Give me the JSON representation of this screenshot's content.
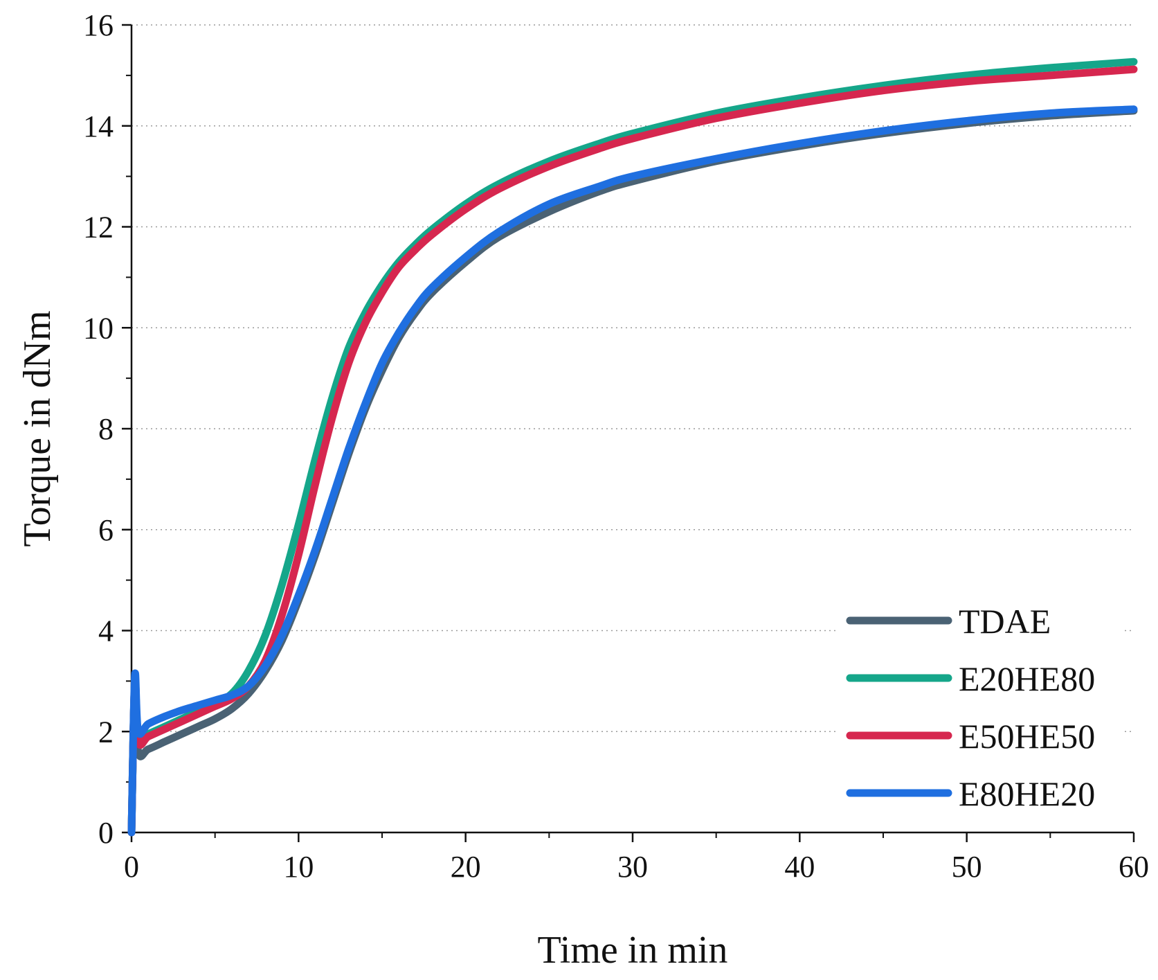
{
  "chart_data": {
    "type": "line",
    "title": "",
    "xlabel": "Time in min",
    "ylabel": "Torque in dNm",
    "xlim": [
      0,
      60
    ],
    "ylim": [
      0,
      16
    ],
    "x_ticks": [
      0,
      10,
      20,
      30,
      40,
      50,
      60
    ],
    "x_tick_labels": [
      "0",
      "10",
      "20",
      "30",
      "40",
      "50",
      "60"
    ],
    "y_ticks": [
      0,
      2,
      4,
      6,
      8,
      10,
      12,
      14,
      16
    ],
    "y_tick_labels": [
      "0",
      "2",
      "4",
      "6",
      "8",
      "10",
      "12",
      "14",
      "16"
    ],
    "grid": "horizontal dotted",
    "legend_position": "bottom-right",
    "series": [
      {
        "name": "TDAE",
        "color": "#4a6274",
        "x": [
          0,
          0.2,
          0.4,
          1,
          2,
          3,
          4,
          5,
          6,
          7,
          8,
          9,
          10,
          11,
          12,
          13,
          14,
          15,
          16,
          17,
          18,
          20,
          22,
          25,
          28,
          30,
          35,
          40,
          45,
          50,
          55,
          60
        ],
        "y": [
          0,
          3.0,
          1.6,
          1.65,
          1.8,
          1.95,
          2.1,
          2.25,
          2.45,
          2.75,
          3.2,
          3.8,
          4.6,
          5.5,
          6.5,
          7.5,
          8.4,
          9.15,
          9.8,
          10.3,
          10.7,
          11.3,
          11.8,
          12.3,
          12.7,
          12.9,
          13.3,
          13.6,
          13.85,
          14.05,
          14.2,
          14.3
        ]
      },
      {
        "name": "E20HE80",
        "color": "#15a68a",
        "x": [
          0,
          0.2,
          0.4,
          1,
          2,
          3,
          4,
          5,
          6,
          7,
          8,
          9,
          10,
          11,
          12,
          13,
          14,
          15,
          16,
          17,
          18,
          20,
          22,
          25,
          28,
          30,
          35,
          40,
          45,
          50,
          55,
          60
        ],
        "y": [
          0,
          3.0,
          1.85,
          1.95,
          2.1,
          2.25,
          2.4,
          2.55,
          2.75,
          3.2,
          3.9,
          4.9,
          6.1,
          7.4,
          8.6,
          9.6,
          10.3,
          10.85,
          11.3,
          11.65,
          11.95,
          12.45,
          12.85,
          13.3,
          13.65,
          13.85,
          14.25,
          14.55,
          14.8,
          15.0,
          15.15,
          15.27
        ]
      },
      {
        "name": "E50HE50",
        "color": "#d6274f",
        "x": [
          0,
          0.2,
          0.4,
          1,
          2,
          3,
          4,
          5,
          6,
          7,
          8,
          9,
          10,
          11,
          12,
          13,
          14,
          15,
          16,
          17,
          18,
          20,
          22,
          25,
          28,
          30,
          35,
          40,
          45,
          50,
          55,
          60
        ],
        "y": [
          0,
          3.0,
          1.8,
          1.9,
          2.05,
          2.2,
          2.35,
          2.5,
          2.65,
          2.9,
          3.4,
          4.3,
          5.5,
          6.9,
          8.2,
          9.3,
          10.1,
          10.7,
          11.2,
          11.55,
          11.85,
          12.35,
          12.75,
          13.2,
          13.55,
          13.75,
          14.15,
          14.45,
          14.7,
          14.88,
          15.0,
          15.12
        ]
      },
      {
        "name": "E80HE20",
        "color": "#1f6fe0",
        "x": [
          0,
          0.2,
          0.4,
          1,
          2,
          3,
          4,
          5,
          6,
          7,
          8,
          9,
          10,
          11,
          12,
          13,
          14,
          15,
          16,
          17,
          18,
          20,
          22,
          25,
          28,
          30,
          35,
          40,
          45,
          50,
          55,
          60
        ],
        "y": [
          0,
          3.1,
          2.0,
          2.15,
          2.3,
          2.42,
          2.52,
          2.62,
          2.72,
          2.9,
          3.3,
          3.9,
          4.7,
          5.6,
          6.6,
          7.6,
          8.5,
          9.3,
          9.9,
          10.4,
          10.8,
          11.4,
          11.9,
          12.45,
          12.8,
          13.0,
          13.35,
          13.65,
          13.9,
          14.1,
          14.25,
          14.33
        ]
      }
    ]
  }
}
